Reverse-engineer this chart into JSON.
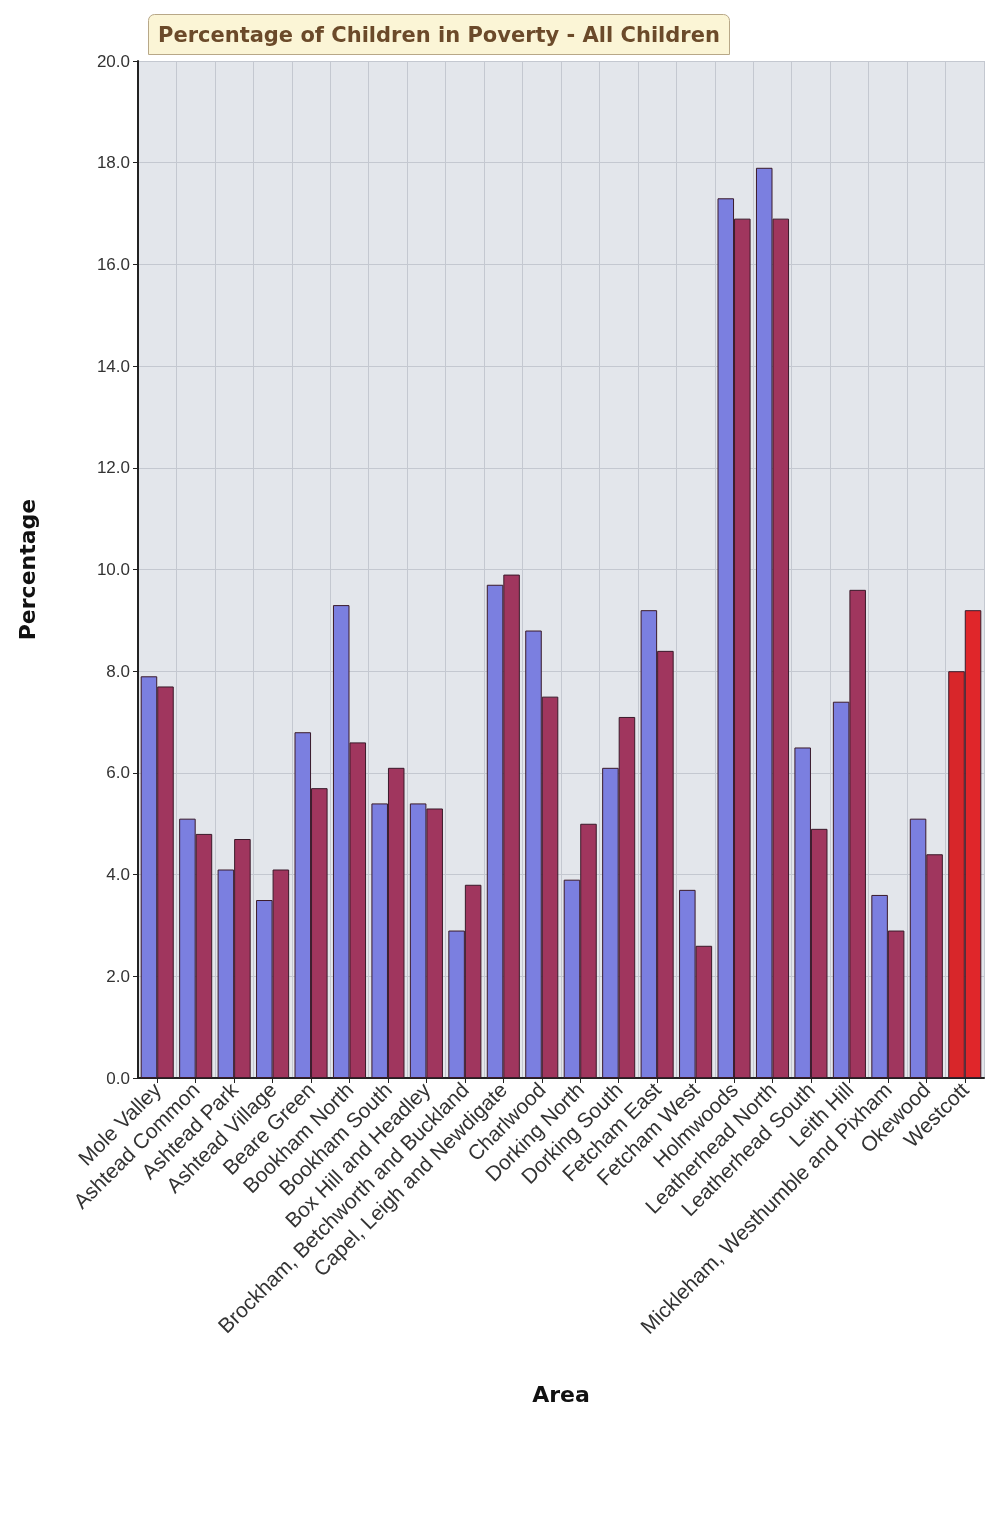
{
  "chart_data": {
    "type": "bar",
    "title": "Percentage of Children in Poverty - All Children",
    "xlabel": "Area",
    "ylabel": "Percentage",
    "categories": [
      "Mole Valley",
      "Ashtead Common",
      "Ashtead Park",
      "Ashtead Village",
      "Beare Green",
      "Bookham North",
      "Bookham South",
      "Box Hill and Headley",
      "Brockham, Betchworth and Buckland",
      "Capel, Leigh and Newdigate",
      "Charlwood",
      "Dorking North",
      "Dorking South",
      "Fetcham East",
      "Fetcham West",
      "Holmwoods",
      "Leatherhead North",
      "Leatherhead South",
      "Leith Hill",
      "Mickleham, Westhumble and Pixham",
      "Okewood",
      "Westcott"
    ],
    "series": [
      {
        "colors": [
          "#7b7fe0",
          "#7b7fe0",
          "#7b7fe0",
          "#7b7fe0",
          "#7b7fe0",
          "#7b7fe0",
          "#7b7fe0",
          "#7b7fe0",
          "#7b7fe0",
          "#7b7fe0",
          "#7b7fe0",
          "#7b7fe0",
          "#7b7fe0",
          "#7b7fe0",
          "#7b7fe0",
          "#7b7fe0",
          "#7b7fe0",
          "#7b7fe0",
          "#7b7fe0",
          "#7b7fe0",
          "#7b7fe0",
          "#d8262a"
        ],
        "values": [
          7.9,
          5.1,
          4.1,
          3.5,
          6.8,
          9.3,
          5.4,
          5.4,
          2.9,
          9.7,
          8.8,
          3.9,
          6.1,
          9.2,
          3.7,
          17.3,
          17.9,
          6.5,
          7.4,
          3.6,
          5.1,
          8.0
        ]
      },
      {
        "colors": [
          "#a0365e",
          "#a0365e",
          "#a0365e",
          "#a0365e",
          "#a0365e",
          "#a0365e",
          "#a0365e",
          "#a0365e",
          "#a0365e",
          "#a0365e",
          "#a0365e",
          "#a0365e",
          "#a0365e",
          "#a0365e",
          "#a0365e",
          "#a0365e",
          "#a0365e",
          "#a0365e",
          "#a0365e",
          "#a0365e",
          "#a0365e",
          "#e0262a"
        ],
        "values": [
          7.7,
          4.8,
          4.7,
          4.1,
          5.7,
          6.6,
          6.1,
          5.3,
          3.8,
          9.9,
          7.5,
          5.0,
          7.1,
          8.4,
          2.6,
          16.9,
          16.9,
          4.9,
          9.6,
          2.9,
          4.4,
          9.2
        ]
      }
    ],
    "ylim": [
      0,
      20
    ],
    "yticks": [
      {
        "value": 0,
        "label": "0.0"
      },
      {
        "value": 2,
        "label": "2.0"
      },
      {
        "value": 4,
        "label": "4.0"
      },
      {
        "value": 6,
        "label": "6.0"
      },
      {
        "value": 8,
        "label": "8.0"
      },
      {
        "value": 10,
        "label": "10.0"
      },
      {
        "value": 12,
        "label": "12.0"
      },
      {
        "value": 14,
        "label": "14.0"
      },
      {
        "value": 16,
        "label": "16.0"
      },
      {
        "value": 18,
        "label": "18.0"
      },
      {
        "value": 20,
        "label": "20.0"
      }
    ],
    "grid": true
  }
}
